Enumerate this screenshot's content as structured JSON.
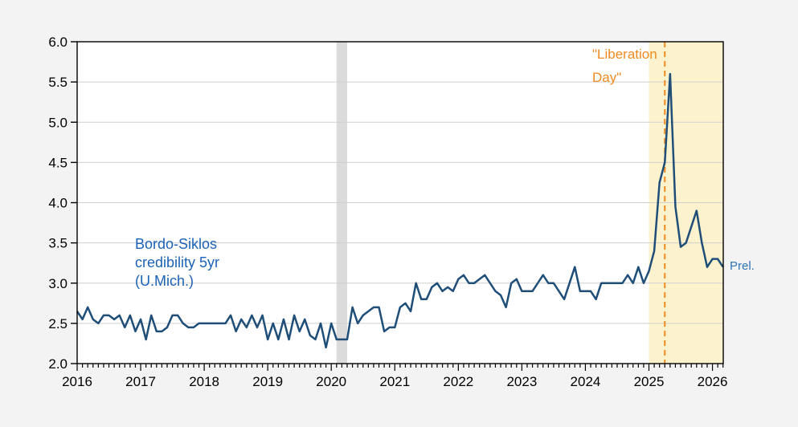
{
  "chart_data": {
    "type": "line",
    "title": "",
    "xlabel": "",
    "ylabel": "",
    "ylim": [
      2.0,
      6.0
    ],
    "xlim": [
      2016.0,
      2026.17
    ],
    "grid": "horizontal",
    "y_ticks": [
      "2.0",
      "2.5",
      "3.0",
      "3.5",
      "4.0",
      "4.5",
      "5.0",
      "5.5",
      "6.0"
    ],
    "x_ticks": [
      "2016",
      "2017",
      "2018",
      "2019",
      "2020",
      "2021",
      "2022",
      "2023",
      "2024",
      "2025",
      "2026"
    ],
    "series": [
      {
        "name": "Bordo-Siklos credibility 5yr (U.Mich.)",
        "color": "#1F4E79",
        "frequency": "monthly",
        "start_year": 2016,
        "start_month": 1,
        "values": [
          2.65,
          2.55,
          2.7,
          2.55,
          2.5,
          2.6,
          2.6,
          2.55,
          2.6,
          2.45,
          2.6,
          2.4,
          2.55,
          2.3,
          2.6,
          2.4,
          2.4,
          2.45,
          2.6,
          2.6,
          2.5,
          2.45,
          2.45,
          2.5,
          2.5,
          2.5,
          2.5,
          2.5,
          2.5,
          2.6,
          2.4,
          2.55,
          2.45,
          2.6,
          2.45,
          2.6,
          2.3,
          2.5,
          2.3,
          2.55,
          2.3,
          2.6,
          2.4,
          2.55,
          2.35,
          2.3,
          2.5,
          2.2,
          2.5,
          2.3,
          2.3,
          2.3,
          2.7,
          2.5,
          2.6,
          2.65,
          2.7,
          2.7,
          2.4,
          2.45,
          2.45,
          2.7,
          2.75,
          2.65,
          3.0,
          2.8,
          2.8,
          2.95,
          3.0,
          2.9,
          2.95,
          2.9,
          3.05,
          3.1,
          3.0,
          3.0,
          3.05,
          3.1,
          3.0,
          2.9,
          2.85,
          2.7,
          3.0,
          3.05,
          2.9,
          2.9,
          2.9,
          3.0,
          3.1,
          3.0,
          3.0,
          2.9,
          2.8,
          3.0,
          3.2,
          2.9,
          2.9,
          2.9,
          2.8,
          3.0,
          3.0,
          3.0,
          3.0,
          3.0,
          3.1,
          3.0,
          3.2,
          3.0,
          3.15,
          3.4,
          4.25,
          4.5,
          5.6,
          3.95,
          3.45,
          3.5,
          3.7,
          3.9,
          3.5,
          3.2,
          3.3,
          3.3,
          3.2
        ]
      }
    ],
    "bands": [
      {
        "name": "recession-band",
        "from": 2020.083,
        "to": 2020.25,
        "color": "#DBDBDB"
      },
      {
        "name": "highlight-band",
        "from": 2025.0,
        "to": 2026.17,
        "color": "#FCF2CE"
      }
    ],
    "vline": {
      "x": 2025.25,
      "color": "#EE8A1F",
      "style": "dashed"
    },
    "series_label": {
      "lines": [
        "Bordo-Siklos",
        "credibility 5yr",
        "(U.Mich.)"
      ],
      "color": "#1C63B7"
    },
    "vline_label": {
      "lines": [
        "\"Liberation",
        "Day\""
      ],
      "color": "#EE8A1F"
    },
    "prel_label": {
      "text": "Prel.",
      "color": "#2E75B6"
    },
    "legend_position": "none",
    "gridline_color": "#CFCFCF",
    "plot_background": "#FFFFFF",
    "outer_background": "#F3F3F3"
  }
}
